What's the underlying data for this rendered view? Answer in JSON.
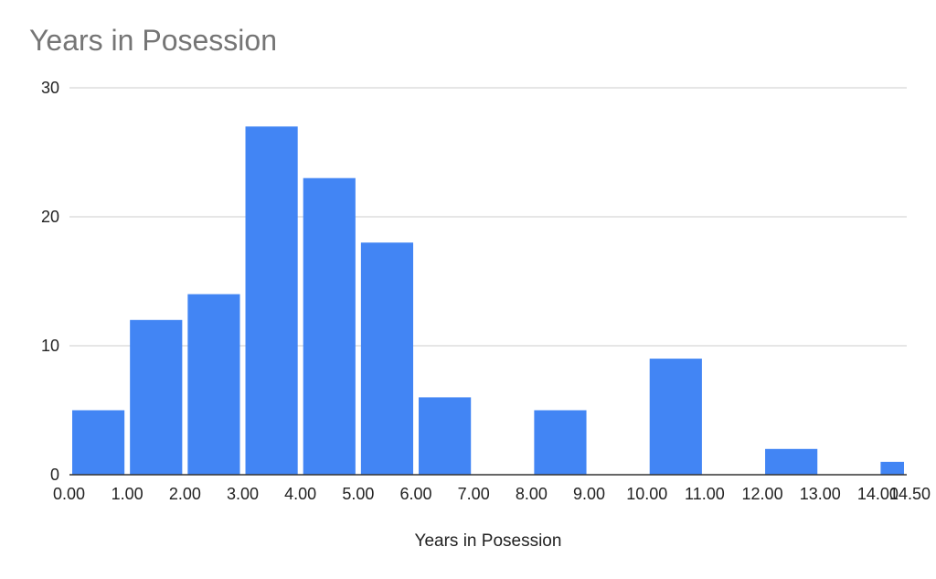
{
  "chart_data": {
    "type": "bar",
    "title": "Years in Posession",
    "xlabel": "Years in Posession",
    "ylabel": "",
    "bin_edges": [
      "0.00",
      "1.00",
      "2.00",
      "3.00",
      "4.00",
      "5.00",
      "6.00",
      "7.00",
      "8.00",
      "9.00",
      "10.00",
      "11.00",
      "12.00",
      "13.00",
      "14.00",
      "14.50"
    ],
    "bins": [
      {
        "start": 0,
        "end": 1,
        "count": 5
      },
      {
        "start": 1,
        "end": 2,
        "count": 12
      },
      {
        "start": 2,
        "end": 3,
        "count": 14
      },
      {
        "start": 3,
        "end": 4,
        "count": 27
      },
      {
        "start": 4,
        "end": 5,
        "count": 23
      },
      {
        "start": 5,
        "end": 6,
        "count": 18
      },
      {
        "start": 6,
        "end": 7,
        "count": 6
      },
      {
        "start": 7,
        "end": 8,
        "count": 0
      },
      {
        "start": 8,
        "end": 9,
        "count": 5
      },
      {
        "start": 9,
        "end": 10,
        "count": 0
      },
      {
        "start": 10,
        "end": 11,
        "count": 9
      },
      {
        "start": 11,
        "end": 12,
        "count": 0
      },
      {
        "start": 12,
        "end": 13,
        "count": 2
      },
      {
        "start": 13,
        "end": 14,
        "count": 0
      },
      {
        "start": 14,
        "end": 14.5,
        "count": 1
      }
    ],
    "yticks": [
      "0",
      "10",
      "20",
      "30"
    ],
    "ylim": [
      0,
      30
    ],
    "xlim": [
      0,
      14.5
    ],
    "grid": true,
    "colors": {
      "bar": "#4285f4",
      "grid": "#cccccc",
      "axis": "#333333"
    }
  }
}
